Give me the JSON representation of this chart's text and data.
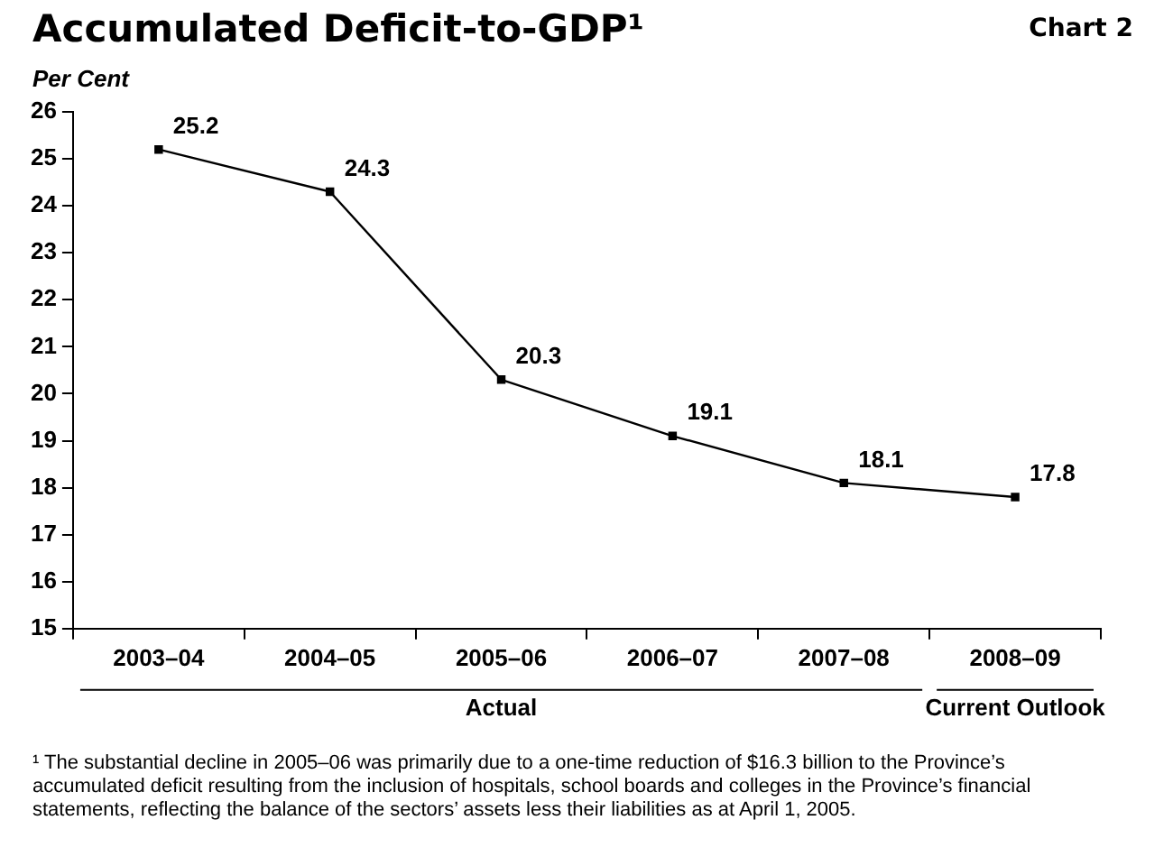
{
  "chart_data": {
    "type": "line",
    "title": "Accumulated Deficit-to-GDP¹",
    "ylabel": "Per Cent",
    "categories": [
      "2003–04",
      "2004–05",
      "2005–06",
      "2006–07",
      "2007–08",
      "2008–09"
    ],
    "series": [
      {
        "color": "#000000",
        "values": [
          25.2,
          24.3,
          20.3,
          19.1,
          18.1,
          17.8
        ]
      }
    ],
    "ylim": [
      15,
      26
    ],
    "yticks": [
      15,
      16,
      17,
      18,
      19,
      20,
      21,
      22,
      23,
      24,
      25,
      26
    ],
    "grid": false,
    "legend": false,
    "marker": "square",
    "line_style": "solid",
    "data_labels": true,
    "annotations": [
      "Chart 2",
      "Actual",
      "Current Outlook",
      "¹ The substantial decline in 2005–06 was primarily due to a one-time reduction of $16.3 billion to the Province’s accumulated deficit resulting from the inclusion of hospitals, school boards and colleges in the Province’s financial statements, reflecting the balance of the sectors’ assets less their liabilities as at April 1, 2005."
    ]
  }
}
